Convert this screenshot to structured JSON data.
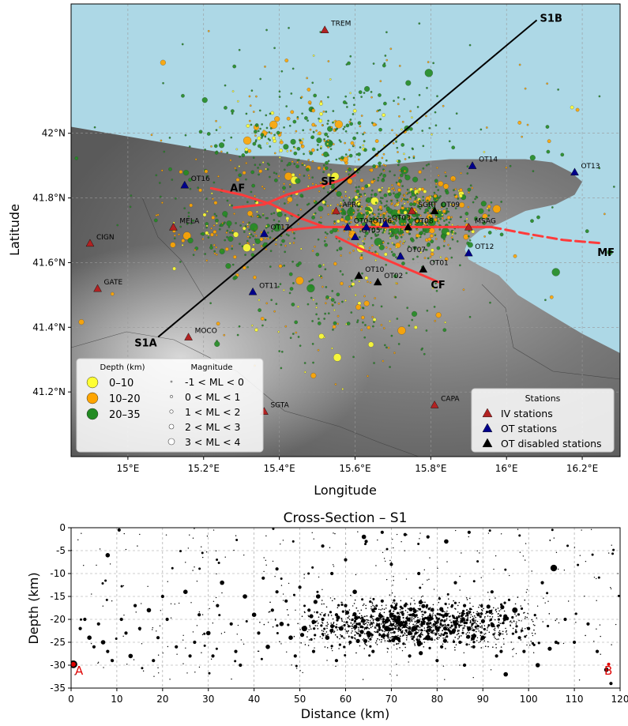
{
  "map": {
    "xlabel": "Longitude",
    "ylabel": "Latitude",
    "lon_range": [
      14.85,
      16.3
    ],
    "lat_range": [
      41.0,
      42.4
    ],
    "x_ticks": [
      {
        "v": 15.0,
        "label": "15°E"
      },
      {
        "v": 15.2,
        "label": "15.2°E"
      },
      {
        "v": 15.4,
        "label": "15.4°E"
      },
      {
        "v": 15.6,
        "label": "15.6°E"
      },
      {
        "v": 15.8,
        "label": "15.8°E"
      },
      {
        "v": 16.0,
        "label": "16°E"
      },
      {
        "v": 16.2,
        "label": "16.2°E"
      }
    ],
    "y_ticks": [
      {
        "v": 41.2,
        "label": "41.2°N"
      },
      {
        "v": 41.4,
        "label": "41.4°N"
      },
      {
        "v": 41.6,
        "label": "41.6°N"
      },
      {
        "v": 41.8,
        "label": "41.8°N"
      },
      {
        "v": 42.0,
        "label": "42°N"
      }
    ],
    "colors": {
      "sea": "#add8e6",
      "land": "#6e6e6e",
      "fault": "#ff3b3b",
      "depth_0_10": "#ffff33",
      "depth_10_20": "#ffa500",
      "depth_20_35": "#228b22",
      "iv_station": "#b22222",
      "ot_station": "#00008b",
      "ot_disabled": "#000000"
    },
    "coastline": [
      [
        14.85,
        42.02
      ],
      [
        15.0,
        41.99
      ],
      [
        15.1,
        41.97
      ],
      [
        15.2,
        41.95
      ],
      [
        15.3,
        41.93
      ],
      [
        15.4,
        41.93
      ],
      [
        15.5,
        41.91
      ],
      [
        15.6,
        41.9
      ],
      [
        15.65,
        41.9
      ],
      [
        15.75,
        41.91
      ],
      [
        15.85,
        41.92
      ],
      [
        15.95,
        41.92
      ],
      [
        16.05,
        41.92
      ],
      [
        16.12,
        41.91
      ],
      [
        16.17,
        41.88
      ],
      [
        16.2,
        41.85
      ],
      [
        16.18,
        41.81
      ],
      [
        16.13,
        41.78
      ],
      [
        16.05,
        41.76
      ],
      [
        15.98,
        41.72
      ],
      [
        15.93,
        41.7
      ],
      [
        15.9,
        41.67
      ],
      [
        15.89,
        41.64
      ],
      [
        15.9,
        41.61
      ],
      [
        15.93,
        41.59
      ],
      [
        15.98,
        41.56
      ],
      [
        16.03,
        41.5
      ],
      [
        16.1,
        41.45
      ],
      [
        16.2,
        41.38
      ],
      [
        16.3,
        41.32
      ]
    ],
    "faults": [
      {
        "label": "AF",
        "label_at": [
          15.27,
          41.82
        ],
        "points": [
          [
            15.22,
            41.83
          ],
          [
            15.3,
            41.81
          ],
          [
            15.38,
            41.78
          ],
          [
            15.45,
            41.74
          ],
          [
            15.52,
            41.71
          ]
        ]
      },
      {
        "label": "SF",
        "label_at": [
          15.51,
          41.84
        ],
        "points": [
          [
            15.28,
            41.77
          ],
          [
            15.36,
            41.78
          ],
          [
            15.42,
            41.81
          ],
          [
            15.48,
            41.83
          ],
          [
            15.55,
            41.85
          ],
          [
            15.6,
            41.87
          ]
        ]
      },
      {
        "label": "",
        "label_at": null,
        "points": [
          [
            15.42,
            41.7
          ],
          [
            15.5,
            41.71
          ],
          [
            15.6,
            41.71
          ],
          [
            15.7,
            41.71
          ],
          [
            15.8,
            41.71
          ],
          [
            15.9,
            41.71
          ],
          [
            15.96,
            41.71
          ]
        ]
      },
      {
        "label": "CF",
        "label_at": [
          15.8,
          41.52
        ],
        "points": [
          [
            15.55,
            41.68
          ],
          [
            15.62,
            41.64
          ],
          [
            15.7,
            41.6
          ],
          [
            15.78,
            41.56
          ],
          [
            15.82,
            41.54
          ]
        ]
      },
      {
        "label": "MF",
        "label_at": [
          16.24,
          41.62
        ],
        "dashed": true,
        "points": [
          [
            15.96,
            41.71
          ],
          [
            16.05,
            41.69
          ],
          [
            16.15,
            41.67
          ],
          [
            16.25,
            41.66
          ]
        ]
      }
    ],
    "section_line": {
      "start": [
        15.08,
        41.37
      ],
      "end": [
        16.08,
        42.35
      ],
      "start_label": "S1A",
      "end_label": "S1B"
    },
    "stations": [
      {
        "name": "TREM",
        "lon": 15.52,
        "lat": 42.32,
        "type": "IV"
      },
      {
        "name": "MELA",
        "lon": 15.12,
        "lat": 41.71,
        "type": "IV"
      },
      {
        "name": "CIGN",
        "lon": 14.9,
        "lat": 41.66,
        "type": "IV"
      },
      {
        "name": "GATE",
        "lon": 14.92,
        "lat": 41.52,
        "type": "IV"
      },
      {
        "name": "MOCO",
        "lon": 15.16,
        "lat": 41.37,
        "type": "IV"
      },
      {
        "name": "SGTA",
        "lon": 15.36,
        "lat": 41.14,
        "type": "IV"
      },
      {
        "name": "CAPA",
        "lon": 15.81,
        "lat": 41.16,
        "type": "IV"
      },
      {
        "name": "APRC",
        "lon": 15.55,
        "lat": 41.76,
        "type": "IV"
      },
      {
        "name": "SGRT",
        "lon": 15.75,
        "lat": 41.76,
        "type": "IV"
      },
      {
        "name": "MSAG",
        "lon": 15.9,
        "lat": 41.71,
        "type": "IV"
      },
      {
        "name": "OT16",
        "lon": 15.15,
        "lat": 41.84,
        "type": "OT"
      },
      {
        "name": "OT17",
        "lon": 15.36,
        "lat": 41.69,
        "type": "OT"
      },
      {
        "name": "OT11",
        "lon": 15.33,
        "lat": 41.51,
        "type": "OT"
      },
      {
        "name": "OT14",
        "lon": 15.91,
        "lat": 41.9,
        "type": "OT"
      },
      {
        "name": "OT13",
        "lon": 16.18,
        "lat": 41.88,
        "type": "OT"
      },
      {
        "name": "OT04",
        "lon": 15.58,
        "lat": 41.71,
        "type": "OT"
      },
      {
        "name": "OT05",
        "lon": 15.6,
        "lat": 41.68,
        "type": "OT"
      },
      {
        "name": "OT06",
        "lon": 15.63,
        "lat": 41.71,
        "type": "OT"
      },
      {
        "name": "OT07",
        "lon": 15.72,
        "lat": 41.62,
        "type": "OT"
      },
      {
        "name": "OT12",
        "lon": 15.9,
        "lat": 41.63,
        "type": "OT"
      },
      {
        "name": "OT03",
        "lon": 15.68,
        "lat": 41.72,
        "type": "OT"
      },
      {
        "name": "OT08",
        "lon": 15.74,
        "lat": 41.71,
        "type": "OT-disabled"
      },
      {
        "name": "OT09",
        "lon": 15.81,
        "lat": 41.76,
        "type": "OT-disabled"
      },
      {
        "name": "OT01",
        "lon": 15.78,
        "lat": 41.58,
        "type": "OT-disabled"
      },
      {
        "name": "OT10",
        "lon": 15.61,
        "lat": 41.56,
        "type": "OT-disabled"
      },
      {
        "name": "OT02",
        "lon": 15.66,
        "lat": 41.54,
        "type": "OT-disabled"
      }
    ],
    "legend_depth": {
      "title": "Depth (km)",
      "items": [
        {
          "label": "0–10",
          "color": "#ffff33"
        },
        {
          "label": "10–20",
          "color": "#ffa500"
        },
        {
          "label": "20–35",
          "color": "#228b22"
        }
      ]
    },
    "legend_magnitude": {
      "title": "Magnitude",
      "items": [
        {
          "label": "-1 < ML < 0"
        },
        {
          "label": "0 < ML < 1"
        },
        {
          "label": "1 < ML < 2"
        },
        {
          "label": "2 < ML < 3"
        },
        {
          "label": "3 < ML < 4"
        }
      ]
    },
    "legend_stations": {
      "title": "Stations",
      "items": [
        {
          "label": "IV stations",
          "color": "#b22222"
        },
        {
          "label": "OT stations",
          "color": "#00008b"
        },
        {
          "label": "OT disabled stations",
          "color": "#000000"
        }
      ]
    }
  },
  "chart_data": {
    "type": "scatter",
    "title": "Cross-Section – S1",
    "xlabel": "Distance (km)",
    "ylabel": "Depth (km)",
    "xlim": [
      0,
      120
    ],
    "ylim": [
      -35,
      0
    ],
    "x_ticks": [
      0,
      10,
      20,
      30,
      40,
      50,
      60,
      70,
      80,
      90,
      100,
      110,
      120
    ],
    "y_ticks": [
      0,
      -5,
      -10,
      -15,
      -20,
      -25,
      -30,
      -35
    ],
    "grid": true,
    "end_labels": {
      "start": "A",
      "end": "B"
    },
    "marker_color": "#000000",
    "endpoint_color": "#e00000",
    "points": [
      [
        0.5,
        -29.8,
        7
      ],
      [
        10.5,
        -0.5,
        3
      ],
      [
        8,
        -6,
        4
      ],
      [
        2,
        -22,
        3
      ],
      [
        4,
        -24,
        4
      ],
      [
        6,
        -21,
        3
      ],
      [
        7,
        -25,
        4
      ],
      [
        8,
        -27,
        3
      ],
      [
        11,
        -20,
        3
      ],
      [
        13,
        -28,
        4
      ],
      [
        15,
        -22,
        3
      ],
      [
        17,
        -18,
        4
      ],
      [
        19,
        -24,
        3
      ],
      [
        21,
        -20,
        3
      ],
      [
        23,
        -26,
        3
      ],
      [
        25,
        -14,
        4
      ],
      [
        26,
        -28,
        3
      ],
      [
        28,
        -19,
        3
      ],
      [
        30,
        -23,
        4
      ],
      [
        32,
        -17,
        3
      ],
      [
        33,
        -12,
        4
      ],
      [
        35,
        -21,
        3
      ],
      [
        36,
        -27,
        3
      ],
      [
        38,
        -15,
        4
      ],
      [
        40,
        -19,
        4
      ],
      [
        41,
        -23,
        3
      ],
      [
        42,
        -11,
        3
      ],
      [
        43,
        -26,
        4
      ],
      [
        44,
        -18,
        3
      ],
      [
        45,
        -14,
        3
      ],
      [
        46,
        -21,
        4
      ],
      [
        47,
        -16,
        3
      ],
      [
        48,
        -24,
        4
      ],
      [
        50,
        -13,
        3
      ],
      [
        51,
        -22,
        5
      ],
      [
        52,
        -18,
        3
      ],
      [
        53,
        -27,
        3
      ],
      [
        54,
        -15,
        4
      ],
      [
        55,
        -20,
        3
      ],
      [
        56,
        -24,
        4
      ],
      [
        57,
        -10,
        3
      ],
      [
        58,
        -19,
        3
      ],
      [
        59,
        -22,
        4
      ],
      [
        60,
        -17,
        3
      ],
      [
        61,
        -25,
        3
      ],
      [
        62,
        -14,
        4
      ],
      [
        63,
        -21,
        3
      ],
      [
        64,
        -2,
        4
      ],
      [
        65,
        -23,
        4
      ],
      [
        66,
        -18,
        3
      ],
      [
        67,
        -20,
        4
      ],
      [
        68,
        -16,
        3
      ],
      [
        69,
        -22,
        5
      ],
      [
        70,
        -19,
        4
      ],
      [
        71,
        -24,
        4
      ],
      [
        72,
        -21,
        5
      ],
      [
        73,
        -17,
        3
      ],
      [
        74,
        -23,
        4
      ],
      [
        75,
        -22,
        5
      ],
      [
        76,
        -25,
        4
      ],
      [
        77,
        -20,
        3
      ],
      [
        78,
        -24,
        5
      ],
      [
        79,
        -18,
        3
      ],
      [
        80,
        -22,
        4
      ],
      [
        81,
        -26,
        3
      ],
      [
        82,
        -19,
        4
      ],
      [
        83,
        -23,
        3
      ],
      [
        84,
        -21,
        4
      ],
      [
        85,
        -25,
        3
      ],
      [
        86,
        -17,
        3
      ],
      [
        87,
        -22,
        4
      ],
      [
        88,
        -26,
        3
      ],
      [
        89,
        -19,
        3
      ],
      [
        90,
        -24,
        4
      ],
      [
        92,
        -21,
        3
      ],
      [
        94,
        -27,
        3
      ],
      [
        95,
        -32,
        4
      ],
      [
        97,
        -18,
        5
      ],
      [
        98,
        -24,
        3
      ],
      [
        100,
        -22,
        3
      ],
      [
        102,
        -30,
        4
      ],
      [
        103,
        -12,
        3
      ],
      [
        105.5,
        -8.8,
        6
      ],
      [
        108,
        -20,
        3
      ],
      [
        110,
        -25,
        3
      ],
      [
        113,
        -21,
        3
      ],
      [
        115,
        -27,
        3
      ],
      [
        117,
        -31,
        4
      ],
      [
        118,
        -34,
        3
      ],
      [
        64.5,
        -3,
        3
      ],
      [
        68,
        -1,
        3
      ],
      [
        73,
        -1.5,
        3
      ],
      [
        78,
        -2,
        3
      ],
      [
        82,
        -3,
        4
      ],
      [
        87,
        -1,
        3
      ],
      [
        55,
        -4,
        3
      ],
      [
        45,
        -9,
        3
      ],
      [
        60,
        -7,
        3
      ],
      [
        70,
        -8,
        3
      ],
      [
        76,
        -10,
        3
      ],
      [
        84,
        -12,
        3
      ],
      [
        92,
        -14,
        3
      ],
      [
        20,
        -15,
        3
      ],
      [
        14,
        -17,
        3
      ],
      [
        3,
        -20,
        3
      ],
      [
        5,
        -26,
        3
      ],
      [
        9,
        -29,
        3
      ],
      [
        12,
        -23,
        3
      ],
      [
        18,
        -29,
        3
      ],
      [
        27,
        -25,
        3
      ],
      [
        31,
        -28,
        3
      ],
      [
        37,
        -30,
        3
      ],
      [
        49,
        -28,
        3
      ],
      [
        58,
        -29,
        3
      ],
      [
        66,
        -27,
        3
      ],
      [
        74,
        -28,
        3
      ],
      [
        80,
        -29,
        3
      ],
      [
        86,
        -30,
        3
      ],
      [
        93,
        -28,
        3
      ],
      [
        99,
        -27,
        3
      ],
      [
        106,
        -25,
        3
      ]
    ]
  }
}
